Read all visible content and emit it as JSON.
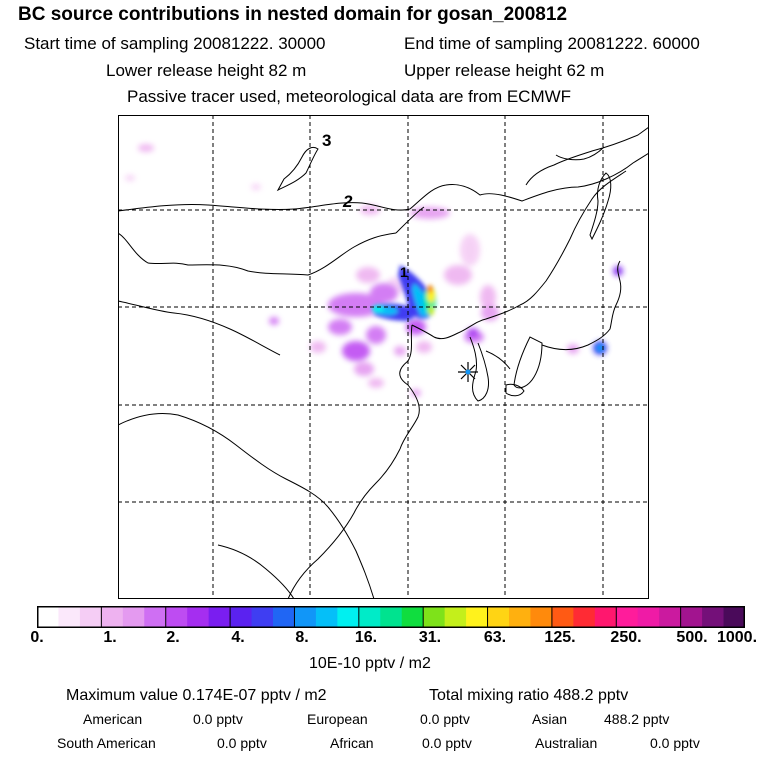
{
  "header": {
    "title": "BC  source contributions in nested domain for gosan_200812",
    "start_time": "Start time of sampling 20081222. 30000",
    "end_time": "End time of sampling 20081222. 60000",
    "lower_height": "Lower release height   82 m",
    "upper_height": "Upper release height   62 m",
    "tracer_note": "Passive tracer used, meteorological data are from ECMWF"
  },
  "map": {
    "contour_labels": [
      "3",
      "2",
      "1"
    ],
    "receptor_marker": "star-cross-icon"
  },
  "colorbar": {
    "colors": [
      "#ffffff",
      "#fbe8fb",
      "#f5cdf5",
      "#eeb2f0",
      "#e49af0",
      "#cf6ff3",
      "#be4cf2",
      "#a52ef0",
      "#7a1ef0",
      "#5b22f0",
      "#3f3ef2",
      "#2066f4",
      "#1196f8",
      "#05bff8",
      "#00f0f0",
      "#00ebc8",
      "#00e38f",
      "#10dd3f",
      "#7ee21a",
      "#c4ef1b",
      "#fff21c",
      "#ffd414",
      "#ffb00f",
      "#ff8a0c",
      "#ff5a14",
      "#ff2b34",
      "#ff176e",
      "#ff1c9b",
      "#ef1ba6",
      "#cb1a9f",
      "#a2148f",
      "#741079",
      "#4a0a5a"
    ],
    "tick_labels": [
      "0.",
      "1.",
      "2.",
      "4.",
      "8.",
      "16.",
      "31.",
      "63.",
      "125.",
      "250.",
      "500.",
      "1000."
    ],
    "unit": "10E-10 pptv / m2"
  },
  "summary": {
    "max_value": "Maximum value  0.174E-07 pptv / m2",
    "total_mixing": "Total mixing ratio      488.2 pptv",
    "american_label": "American",
    "american_value": "0.0 pptv",
    "european_label": "European",
    "european_value": "0.0 pptv",
    "asian_label": "Asian",
    "asian_value": "488.2 pptv",
    "south_american_label": "South American",
    "south_american_value": "0.0 pptv",
    "african_label": "African",
    "african_value": "0.0 pptv",
    "australian_label": "Australian",
    "australian_value": "0.0 pptv"
  }
}
